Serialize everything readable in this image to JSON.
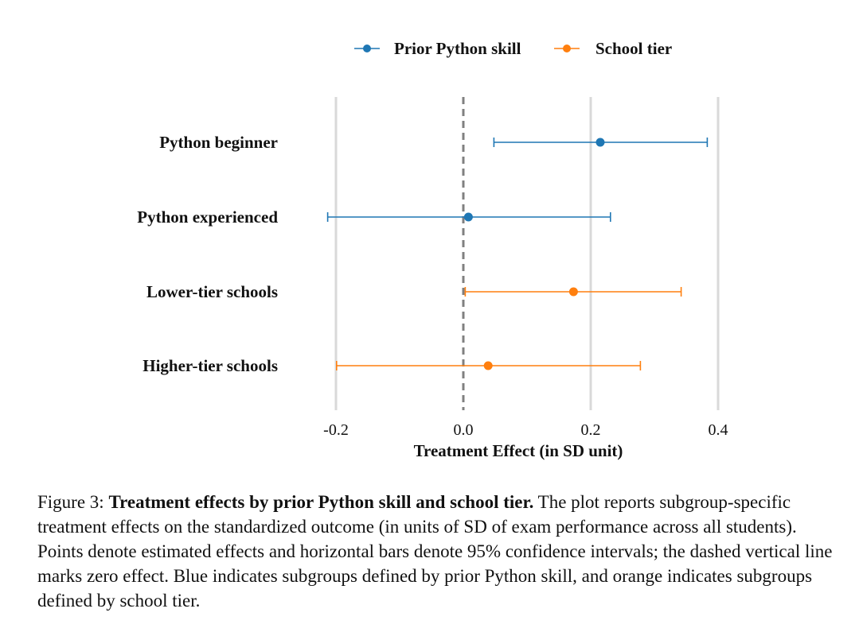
{
  "chart_data": {
    "type": "forest",
    "xlabel": "Treatment Effect (in SD unit)",
    "xlim": [
      -0.2,
      0.4
    ],
    "xticks": [
      -0.2,
      0.0,
      0.2,
      0.4
    ],
    "xtick_labels": [
      "-0.2",
      "0.0",
      "0.2",
      "0.4"
    ],
    "reference_line": 0.0,
    "gridlines": "vertical at ticks",
    "legend": {
      "placement": "top-center",
      "entries": [
        {
          "name": "Prior Python skill",
          "color": "#1f77b4"
        },
        {
          "name": "School tier",
          "color": "#ff7f0e"
        }
      ]
    },
    "rows": [
      {
        "label": "Python beginner",
        "group": "Prior Python skill",
        "estimate": 0.215,
        "ci_low": 0.048,
        "ci_high": 0.383
      },
      {
        "label": "Python experienced",
        "group": "Prior Python skill",
        "estimate": 0.008,
        "ci_low": -0.213,
        "ci_high": 0.231
      },
      {
        "label": "Lower-tier schools",
        "group": "School tier",
        "estimate": 0.173,
        "ci_low": 0.003,
        "ci_high": 0.342
      },
      {
        "label": "Higher-tier schools",
        "group": "School tier",
        "estimate": 0.039,
        "ci_low": -0.199,
        "ci_high": 0.278
      }
    ]
  },
  "caption": {
    "prefix": "Figure 3: ",
    "bold": "Treatment effects by prior Python skill and school tier.",
    "text": " The plot reports subgroup-specific treatment effects on the standardized outcome (in units of SD of exam performance across all students). Points denote estimated effects and horizontal bars denote 95% confidence intervals; the dashed vertical line marks zero effect. Blue indicates subgroups defined by prior Python skill, and orange indicates subgroups defined by school tier."
  }
}
